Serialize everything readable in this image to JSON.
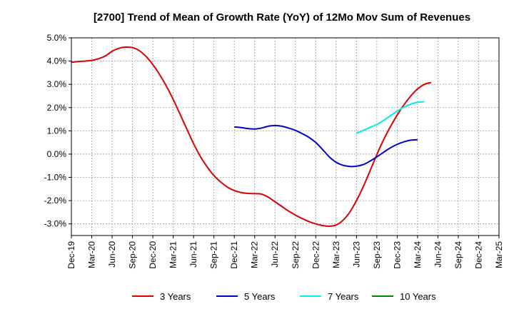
{
  "chart_data": {
    "type": "line",
    "title": "[2700]  Trend of Mean of Growth Rate (YoY) of 12Mo Mov Sum of Revenues",
    "xlabel": "",
    "ylabel": "",
    "ylim": [
      -3.5,
      5.0
    ],
    "y_ticks": [
      5.0,
      4.0,
      3.0,
      2.0,
      1.0,
      0.0,
      -1.0,
      -2.0,
      -3.0
    ],
    "y_tick_labels": [
      "5.0%",
      "4.0%",
      "3.0%",
      "2.0%",
      "1.0%",
      "0.0%",
      "-1.0%",
      "-2.0%",
      "-3.0%"
    ],
    "x_tick_labels": [
      "Dec-19",
      "Mar-20",
      "Jun-20",
      "Sep-20",
      "Dec-20",
      "Mar-21",
      "Jun-21",
      "Sep-21",
      "Dec-21",
      "Mar-22",
      "Jun-22",
      "Sep-22",
      "Dec-22",
      "Mar-23",
      "Jun-23",
      "Sep-23",
      "Dec-23",
      "Mar-24",
      "Jun-24",
      "Sep-24",
      "Dec-24",
      "Mar-25"
    ],
    "x_range_months": [
      0,
      63
    ],
    "grid": true,
    "legend_position": "bottom",
    "series": [
      {
        "name": "3 Years",
        "color": "#dd0000",
        "points": [
          [
            0,
            3.95
          ],
          [
            1,
            3.98
          ],
          [
            2,
            4.0
          ],
          [
            3,
            4.03
          ],
          [
            4,
            4.1
          ],
          [
            5,
            4.22
          ],
          [
            6,
            4.42
          ],
          [
            7,
            4.55
          ],
          [
            8,
            4.6
          ],
          [
            9,
            4.58
          ],
          [
            10,
            4.45
          ],
          [
            11,
            4.2
          ],
          [
            12,
            3.85
          ],
          [
            13,
            3.42
          ],
          [
            14,
            2.92
          ],
          [
            15,
            2.35
          ],
          [
            16,
            1.72
          ],
          [
            17,
            1.08
          ],
          [
            18,
            0.45
          ],
          [
            19,
            -0.1
          ],
          [
            20,
            -0.55
          ],
          [
            21,
            -0.92
          ],
          [
            22,
            -1.2
          ],
          [
            23,
            -1.42
          ],
          [
            24,
            -1.57
          ],
          [
            25,
            -1.65
          ],
          [
            26,
            -1.69
          ],
          [
            27,
            -1.7
          ],
          [
            28,
            -1.72
          ],
          [
            29,
            -1.85
          ],
          [
            30,
            -2.05
          ],
          [
            31,
            -2.25
          ],
          [
            32,
            -2.45
          ],
          [
            33,
            -2.62
          ],
          [
            34,
            -2.77
          ],
          [
            35,
            -2.9
          ],
          [
            36,
            -3.0
          ],
          [
            37,
            -3.07
          ],
          [
            38,
            -3.1
          ],
          [
            39,
            -3.05
          ],
          [
            40,
            -2.85
          ],
          [
            41,
            -2.5
          ],
          [
            42,
            -2.0
          ],
          [
            43,
            -1.4
          ],
          [
            44,
            -0.72
          ],
          [
            45,
            -0.02
          ],
          [
            46,
            0.62
          ],
          [
            47,
            1.18
          ],
          [
            48,
            1.68
          ],
          [
            49,
            2.12
          ],
          [
            50,
            2.5
          ],
          [
            51,
            2.8
          ],
          [
            52,
            3.0
          ],
          [
            53,
            3.08
          ]
        ]
      },
      {
        "name": "5 Years",
        "color": "#0000cc",
        "points": [
          [
            24,
            1.17
          ],
          [
            25,
            1.14
          ],
          [
            26,
            1.1
          ],
          [
            27,
            1.08
          ],
          [
            28,
            1.12
          ],
          [
            29,
            1.2
          ],
          [
            30,
            1.23
          ],
          [
            31,
            1.2
          ],
          [
            32,
            1.12
          ],
          [
            33,
            1.02
          ],
          [
            34,
            0.88
          ],
          [
            35,
            0.72
          ],
          [
            36,
            0.5
          ],
          [
            37,
            0.2
          ],
          [
            38,
            -0.12
          ],
          [
            39,
            -0.35
          ],
          [
            40,
            -0.48
          ],
          [
            41,
            -0.53
          ],
          [
            42,
            -0.52
          ],
          [
            43,
            -0.45
          ],
          [
            44,
            -0.3
          ],
          [
            45,
            -0.12
          ],
          [
            46,
            0.08
          ],
          [
            47,
            0.27
          ],
          [
            48,
            0.42
          ],
          [
            49,
            0.53
          ],
          [
            50,
            0.6
          ],
          [
            51,
            0.62
          ]
        ]
      },
      {
        "name": "7 Years",
        "color": "#00eeee",
        "points": [
          [
            42,
            0.9
          ],
          [
            43,
            1.02
          ],
          [
            44,
            1.15
          ],
          [
            45,
            1.28
          ],
          [
            46,
            1.45
          ],
          [
            47,
            1.65
          ],
          [
            48,
            1.85
          ],
          [
            49,
            2.02
          ],
          [
            50,
            2.15
          ],
          [
            51,
            2.23
          ],
          [
            52,
            2.25
          ]
        ]
      },
      {
        "name": "10 Years",
        "color": "#008800",
        "points": []
      }
    ]
  }
}
